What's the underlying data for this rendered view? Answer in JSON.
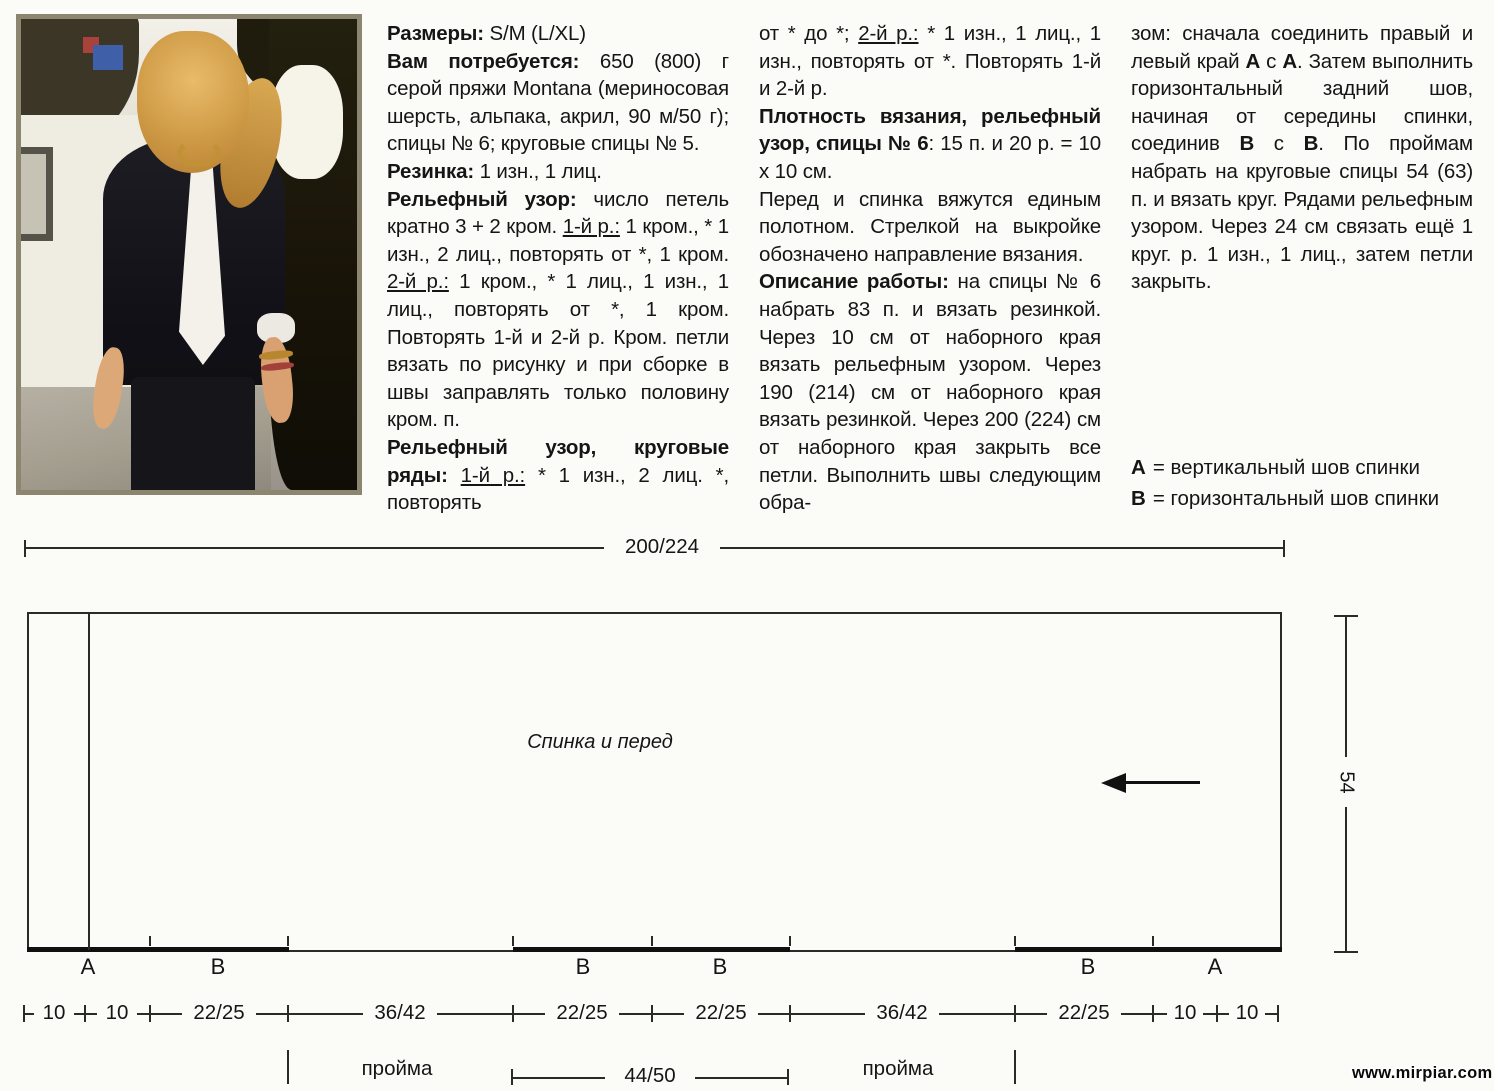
{
  "colors": {
    "page-bg": "#fbfbf8",
    "text": "#151515",
    "line": "#2a2a26",
    "photo-frame": "#8c8671",
    "watermark": "#0a0a0a"
  },
  "columns": [
    {
      "paragraphs": [
        [
          {
            "t": "Размеры:",
            "b": 1
          },
          {
            "t": " S/M (L/XL)"
          }
        ],
        [
          {
            "t": "Вам потребуется:",
            "b": 1
          },
          {
            "t": " 650 (800) г серой пряжи Montana (мериносовая шерсть, альпака, акрил, 90 м/50 г); спицы № 6; круговые спицы № 5."
          }
        ],
        [
          {
            "t": "Резинка:",
            "b": 1
          },
          {
            "t": " 1 изн., 1 лиц."
          }
        ],
        [
          {
            "t": "Рельефный узор:",
            "b": 1
          },
          {
            "t": " число петель кратно 3 + 2 кром. "
          },
          {
            "t": "1-й р.:",
            "u": 1
          },
          {
            "t": " 1 кром., * 1 изн., 2 лиц., повторять от *, 1 кром. "
          },
          {
            "t": "2-й р.:",
            "u": 1
          },
          {
            "t": " 1 кром., * 1 лиц., 1 изн., 1 лиц., повторять от *, 1 кром. Повторять 1-й и 2-й р. Кром. петли вязать по рисунку и при сборке в швы заправлять только половину кром. п."
          }
        ],
        [
          {
            "t": "Рельефный узор, круговые ряды:",
            "b": 1
          },
          {
            "t": " "
          },
          {
            "t": "1-й р.:",
            "u": 1
          },
          {
            "t": " * 1 изн., 2 лиц. *, повторять"
          }
        ]
      ]
    },
    {
      "paragraphs": [
        [
          {
            "t": "от * до *; "
          },
          {
            "t": "2-й р.:",
            "u": 1
          },
          {
            "t": " * 1 изн., 1 лиц., 1 изн., повторять от *. Повторять 1-й и 2-й р."
          }
        ],
        [
          {
            "t": "Плотность вязания, рельефный узор, спицы № 6",
            "b": 1
          },
          {
            "t": ": 15 п. и 20 р. = 10 х 10 см."
          }
        ],
        [
          {
            "t": "Перед и спинка вяжутся единым полотном. Стрелкой на выкройке обозначено направление вязания."
          }
        ],
        [
          {
            "t": "Описание работы:",
            "b": 1
          },
          {
            "t": " на спицы № 6 набрать 83 п. и вязать резинкой. Через 10 см от наборного края вязать рельефным узором. Через 190 (214) см от наборного края вязать резинкой. Через 200 (224) см от наборного края закрыть все петли. Выполнить швы следующим обра-"
          }
        ]
      ]
    },
    {
      "paragraphs": [
        [
          {
            "t": "зом: сначала соединить правый и левый край "
          },
          {
            "t": "А",
            "b": 1
          },
          {
            "t": " с "
          },
          {
            "t": "А",
            "b": 1
          },
          {
            "t": ". Затем выполнить горизонтальный задний шов, начиная от середины спинки, соединив "
          },
          {
            "t": "В",
            "b": 1
          },
          {
            "t": " с "
          },
          {
            "t": "В",
            "b": 1
          },
          {
            "t": ". По проймам набрать на круговые спицы 54 (63) п. и вязать круг. Рядами рельефным узором. Через 24 см связать ещё 1 круг. р. 1 изн., 1 лиц., затем петли закрыть."
          }
        ]
      ]
    }
  ],
  "legend": [
    {
      "key": "А",
      "text": "= вертикальный шов спинки"
    },
    {
      "key": "В",
      "text": "= горизонтальный шов спинки"
    }
  ],
  "diagram": {
    "top_width": "200/224",
    "piece_label": "Спинка и перед",
    "side_height": "54",
    "seam_letters": [
      "А",
      "В",
      "В",
      "В",
      "В",
      "А"
    ],
    "bottom_dims": [
      "10",
      "10",
      "22/25",
      "36/42",
      "22/25",
      "22/25",
      "36/42",
      "22/25",
      "10",
      "10"
    ],
    "underarm_width": "44/50",
    "armhole_labels": [
      "пройма",
      "пройма"
    ]
  },
  "watermark": "www.mirpiar.com"
}
